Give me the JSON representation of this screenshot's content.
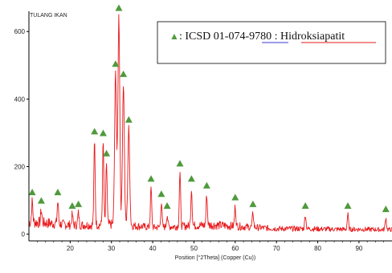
{
  "chart_data": {
    "type": "line",
    "sample_label": "TULANG IKAN",
    "xlabel": "Position [°2Theta] (Copper (Cu))",
    "ylabel": "",
    "xlim": [
      10,
      98
    ],
    "ylim": [
      -20,
      660
    ],
    "xticks": [
      20,
      30,
      40,
      50,
      60,
      70,
      80,
      90
    ],
    "yticks": [
      0,
      200,
      400,
      600
    ],
    "grid": false,
    "colors": {
      "trace": "#e8191b",
      "marker": "#4f9a3c",
      "axis": "#000000"
    },
    "legend": {
      "placement": "top-right",
      "marker": "▲",
      "prefix": ": ICSD 01-074-",
      "code_part": "9780",
      "separator": " : ",
      "phase": "Hidroksiapatit"
    },
    "baseline": [
      [
        10,
        40
      ],
      [
        15,
        36
      ],
      [
        20,
        30
      ],
      [
        25,
        30
      ],
      [
        30,
        32
      ],
      [
        35,
        28
      ],
      [
        40,
        22
      ],
      [
        45,
        25
      ],
      [
        50,
        28
      ],
      [
        55,
        30
      ],
      [
        60,
        26
      ],
      [
        65,
        22
      ],
      [
        70,
        18
      ],
      [
        75,
        18
      ],
      [
        80,
        17
      ],
      [
        85,
        16
      ],
      [
        90,
        16
      ],
      [
        95,
        15
      ],
      [
        98,
        15
      ]
    ],
    "peaks": [
      {
        "x": 10.8,
        "y": 100
      },
      {
        "x": 13.0,
        "y": 75
      },
      {
        "x": 17.0,
        "y": 100
      },
      {
        "x": 20.5,
        "y": 60
      },
      {
        "x": 22.0,
        "y": 65
      },
      {
        "x": 25.9,
        "y": 280
      },
      {
        "x": 28.0,
        "y": 275
      },
      {
        "x": 28.8,
        "y": 215
      },
      {
        "x": 31.0,
        "y": 480
      },
      {
        "x": 31.8,
        "y": 650
      },
      {
        "x": 32.9,
        "y": 450
      },
      {
        "x": 34.2,
        "y": 315
      },
      {
        "x": 39.6,
        "y": 140
      },
      {
        "x": 42.1,
        "y": 95
      },
      {
        "x": 43.5,
        "y": 60
      },
      {
        "x": 46.6,
        "y": 185
      },
      {
        "x": 49.4,
        "y": 140
      },
      {
        "x": 53.1,
        "y": 120
      },
      {
        "x": 60.0,
        "y": 85
      },
      {
        "x": 64.3,
        "y": 65
      },
      {
        "x": 77.0,
        "y": 60
      },
      {
        "x": 87.3,
        "y": 60
      },
      {
        "x": 96.5,
        "y": 50
      }
    ],
    "markers": [
      10.8,
      13.0,
      17.0,
      20.5,
      22.0,
      25.9,
      28.0,
      28.8,
      31.0,
      31.8,
      32.9,
      34.2,
      39.6,
      42.1,
      43.5,
      46.6,
      49.4,
      53.1,
      60.0,
      64.3,
      77.0,
      87.3,
      96.5
    ]
  }
}
